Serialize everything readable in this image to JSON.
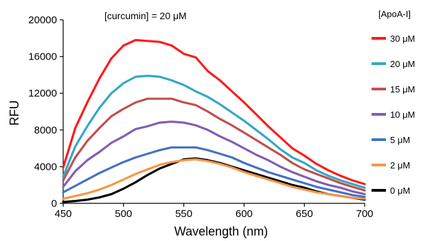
{
  "chart_data": {
    "type": "line",
    "annotation": "[curcumin] = 20 μM",
    "xlabel": "Wavelength (nm)",
    "ylabel": "RFU",
    "xlim": [
      450,
      700
    ],
    "ylim": [
      0,
      20000
    ],
    "xticks": [
      "450",
      "500",
      "550",
      "600",
      "650",
      "700"
    ],
    "yticks": [
      "0",
      "4000",
      "8000",
      "12000",
      "16000",
      "20000"
    ],
    "grid": false,
    "legend_title": "[ApoA-I]",
    "legend_position": "right",
    "series": [
      {
        "name": "30 μM",
        "color": "#ff1a1a",
        "x": [
          450,
          460,
          470,
          480,
          490,
          500,
          510,
          520,
          530,
          540,
          550,
          560,
          570,
          580,
          590,
          600,
          610,
          620,
          630,
          640,
          650,
          660,
          670,
          680,
          690,
          700
        ],
        "y": [
          3900,
          8200,
          11000,
          13600,
          15800,
          17200,
          17800,
          17700,
          17600,
          17200,
          16300,
          15900,
          14400,
          13400,
          12200,
          11000,
          9700,
          8400,
          7200,
          6000,
          5200,
          4300,
          3600,
          3000,
          2500,
          2100
        ]
      },
      {
        "name": "20 μM",
        "color": "#31a9c6",
        "x": [
          450,
          460,
          470,
          480,
          490,
          500,
          510,
          520,
          530,
          540,
          550,
          560,
          570,
          580,
          590,
          600,
          610,
          620,
          630,
          640,
          650,
          660,
          670,
          680,
          690,
          700
        ],
        "y": [
          2900,
          6200,
          8400,
          10400,
          12000,
          13100,
          13800,
          13900,
          13800,
          13400,
          12900,
          12200,
          11600,
          10800,
          9900,
          9000,
          8000,
          7000,
          5900,
          5000,
          4400,
          3600,
          3000,
          2500,
          2100,
          1700
        ]
      },
      {
        "name": "15 μM",
        "color": "#c0504d",
        "x": [
          450,
          460,
          470,
          480,
          490,
          500,
          510,
          520,
          530,
          540,
          550,
          560,
          570,
          580,
          590,
          600,
          610,
          620,
          630,
          640,
          650,
          660,
          670,
          680,
          690,
          700
        ],
        "y": [
          2500,
          5000,
          6800,
          8200,
          9500,
          10300,
          11000,
          11400,
          11400,
          11400,
          11000,
          10700,
          10000,
          9200,
          8500,
          7700,
          6900,
          6100,
          5300,
          4400,
          3700,
          3200,
          2700,
          2200,
          1800,
          1400
        ]
      },
      {
        "name": "10 μM",
        "color": "#7f5fb3",
        "x": [
          450,
          460,
          470,
          480,
          490,
          500,
          510,
          520,
          530,
          540,
          550,
          560,
          570,
          580,
          590,
          600,
          610,
          620,
          630,
          640,
          650,
          660,
          670,
          680,
          690,
          700
        ],
        "y": [
          1800,
          3500,
          4700,
          5600,
          6600,
          7300,
          8100,
          8400,
          8800,
          8900,
          8800,
          8500,
          8000,
          7300,
          6700,
          6000,
          5300,
          4700,
          4000,
          3400,
          2900,
          2400,
          2000,
          1700,
          1300,
          1000
        ]
      },
      {
        "name": "5 μM",
        "color": "#4472c4",
        "x": [
          450,
          460,
          470,
          480,
          490,
          500,
          510,
          520,
          530,
          540,
          550,
          560,
          570,
          580,
          590,
          600,
          610,
          620,
          630,
          640,
          650,
          660,
          670,
          680,
          690,
          700
        ],
        "y": [
          1200,
          1900,
          2600,
          3300,
          3900,
          4500,
          5000,
          5400,
          5800,
          6100,
          6100,
          6100,
          5800,
          5400,
          5000,
          4400,
          3900,
          3400,
          3000,
          2600,
          2200,
          1800,
          1500,
          1200,
          900,
          700
        ]
      },
      {
        "name": "2 μM",
        "color": "#f79646",
        "x": [
          450,
          460,
          470,
          480,
          490,
          500,
          510,
          520,
          530,
          540,
          550,
          560,
          570,
          580,
          590,
          600,
          610,
          620,
          630,
          640,
          650,
          660,
          670,
          680,
          690,
          700
        ],
        "y": [
          500,
          800,
          1100,
          1500,
          2000,
          2600,
          3200,
          3700,
          4200,
          4500,
          4700,
          4800,
          4600,
          4300,
          3900,
          3400,
          3000,
          2600,
          2200,
          1800,
          1500,
          1200,
          1000,
          800,
          600,
          500
        ]
      },
      {
        "name": "0 μM",
        "color": "#000000",
        "x": [
          450,
          460,
          470,
          480,
          490,
          500,
          510,
          520,
          530,
          540,
          550,
          560,
          570,
          580,
          590,
          600,
          610,
          620,
          630,
          640,
          650,
          660,
          670,
          680,
          690,
          700
        ],
        "y": [
          150,
          250,
          400,
          650,
          1000,
          1600,
          2300,
          3100,
          3800,
          4300,
          4800,
          4900,
          4700,
          4400,
          4000,
          3600,
          3200,
          2800,
          2400,
          2000,
          1700,
          1300,
          1000,
          800,
          600,
          400
        ]
      }
    ]
  }
}
